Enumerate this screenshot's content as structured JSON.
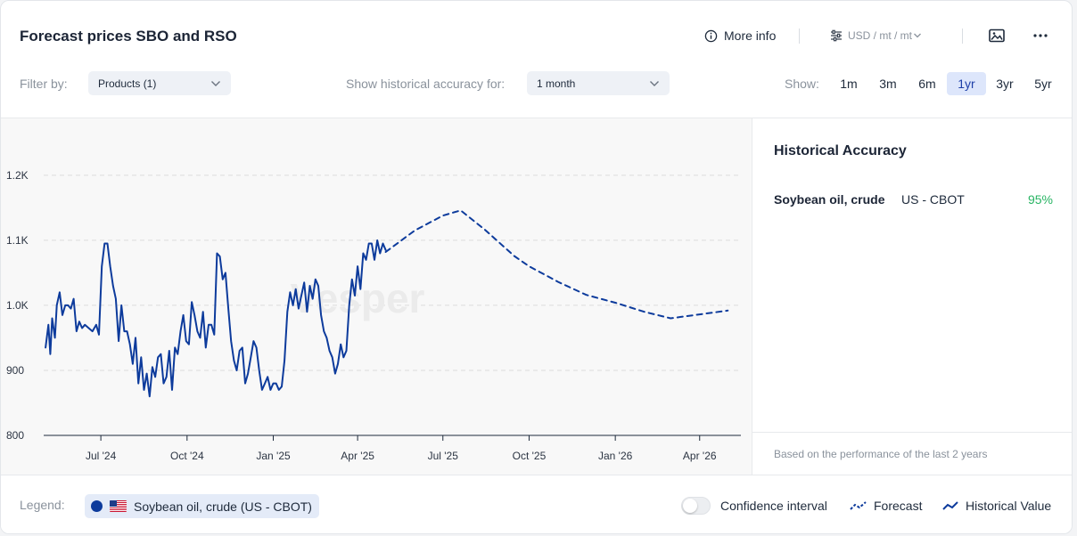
{
  "header": {
    "title": "Forecast prices SBO and RSO",
    "more_info_label": "More info",
    "unit_selector": "USD / mt / mt"
  },
  "filters": {
    "filter_by_label": "Filter by:",
    "products_value": "Products (1)",
    "accuracy_label": "Show historical accuracy for:",
    "accuracy_value": "1 month",
    "show_label": "Show:",
    "ranges": [
      "1m",
      "3m",
      "6m",
      "1yr",
      "3yr",
      "5yr"
    ],
    "active_range": "1yr"
  },
  "watermark": "Vesper",
  "chart_data": {
    "type": "line",
    "ylim": [
      800,
      1260
    ],
    "yticks": [
      800,
      900,
      1000,
      1100,
      1200
    ],
    "ytick_labels": [
      "800",
      "900",
      "1.0K",
      "1.1K",
      "1.2K"
    ],
    "xlim": [
      "2024-05-01",
      "2026-05-15"
    ],
    "xticks": [
      "2024-07-01",
      "2024-10-01",
      "2025-01-01",
      "2025-04-01",
      "2025-07-01",
      "2025-10-01",
      "2026-01-01",
      "2026-04-01"
    ],
    "xtick_labels": [
      "Jul '24",
      "Oct '24",
      "Jan '25",
      "Apr '25",
      "Jul '25",
      "Oct '25",
      "Jan '26",
      "Apr '26"
    ],
    "grid": "horizontal dashed",
    "series": [
      {
        "name": "Historical Value",
        "style": "solid",
        "color": "#0d3b9c",
        "x": [
          "2024-05-03",
          "2024-05-06",
          "2024-05-08",
          "2024-05-10",
          "2024-05-13",
          "2024-05-15",
          "2024-05-18",
          "2024-05-21",
          "2024-05-24",
          "2024-05-27",
          "2024-05-30",
          "2024-06-02",
          "2024-06-05",
          "2024-06-08",
          "2024-06-11",
          "2024-06-14",
          "2024-06-18",
          "2024-06-22",
          "2024-06-26",
          "2024-06-29",
          "2024-07-02",
          "2024-07-05",
          "2024-07-08",
          "2024-07-11",
          "2024-07-14",
          "2024-07-17",
          "2024-07-20",
          "2024-07-23",
          "2024-07-26",
          "2024-07-29",
          "2024-08-01",
          "2024-08-04",
          "2024-08-07",
          "2024-08-10",
          "2024-08-13",
          "2024-08-16",
          "2024-08-19",
          "2024-08-22",
          "2024-08-25",
          "2024-08-28",
          "2024-08-31",
          "2024-09-03",
          "2024-09-06",
          "2024-09-09",
          "2024-09-12",
          "2024-09-15",
          "2024-09-18",
          "2024-09-21",
          "2024-09-24",
          "2024-09-27",
          "2024-09-30",
          "2024-10-03",
          "2024-10-06",
          "2024-10-09",
          "2024-10-12",
          "2024-10-15",
          "2024-10-18",
          "2024-10-21",
          "2024-10-24",
          "2024-10-27",
          "2024-10-30",
          "2024-11-02",
          "2024-11-05",
          "2024-11-08",
          "2024-11-11",
          "2024-11-14",
          "2024-11-17",
          "2024-11-20",
          "2024-11-23",
          "2024-11-26",
          "2024-11-29",
          "2024-12-02",
          "2024-12-05",
          "2024-12-08",
          "2024-12-11",
          "2024-12-14",
          "2024-12-17",
          "2024-12-20",
          "2024-12-23",
          "2024-12-26",
          "2024-12-29",
          "2025-01-01",
          "2025-01-04",
          "2025-01-07",
          "2025-01-10",
          "2025-01-13",
          "2025-01-16",
          "2025-01-19",
          "2025-01-22",
          "2025-01-25",
          "2025-01-28",
          "2025-01-31",
          "2025-02-03",
          "2025-02-06",
          "2025-02-09",
          "2025-02-12",
          "2025-02-15",
          "2025-02-18",
          "2025-02-21",
          "2025-02-24",
          "2025-02-27",
          "2025-03-02",
          "2025-03-05",
          "2025-03-08",
          "2025-03-11",
          "2025-03-14",
          "2025-03-17",
          "2025-03-20",
          "2025-03-23",
          "2025-03-26",
          "2025-03-29",
          "2025-04-01",
          "2025-04-04",
          "2025-04-07",
          "2025-04-10",
          "2025-04-13",
          "2025-04-16",
          "2025-04-19",
          "2025-04-22",
          "2025-04-25",
          "2025-04-28",
          "2025-05-01"
        ],
        "values": [
          935,
          970,
          925,
          980,
          950,
          1000,
          1020,
          985,
          1000,
          1000,
          995,
          1010,
          960,
          975,
          965,
          970,
          965,
          960,
          970,
          955,
          1060,
          1095,
          1095,
          1060,
          1030,
          1010,
          945,
          1000,
          960,
          960,
          940,
          910,
          950,
          880,
          920,
          870,
          895,
          860,
          905,
          890,
          920,
          925,
          880,
          890,
          930,
          870,
          935,
          925,
          960,
          985,
          945,
          940,
          1005,
          985,
          960,
          950,
          990,
          935,
          970,
          970,
          955,
          1080,
          1075,
          1040,
          1050,
          995,
          945,
          915,
          900,
          930,
          935,
          880,
          895,
          920,
          945,
          935,
          900,
          870,
          880,
          890,
          870,
          880,
          880,
          870,
          875,
          915,
          990,
          1020,
          1000,
          1025,
          995,
          1015,
          1035,
          990,
          1030,
          1010,
          1040,
          1030,
          985,
          960,
          950,
          930,
          920,
          895,
          910,
          940,
          920,
          930,
          1000,
          1040,
          1015,
          1060,
          1025,
          1080,
          1070,
          1095,
          1095,
          1070,
          1100,
          1080,
          1095,
          1085
        ]
      },
      {
        "name": "Forecast",
        "style": "dashed",
        "color": "#0d3b9c",
        "x": [
          "2025-05-01",
          "2025-06-01",
          "2025-07-01",
          "2025-07-20",
          "2025-08-15",
          "2025-09-15",
          "2025-10-01",
          "2025-11-01",
          "2025-12-01",
          "2026-01-01",
          "2026-02-01",
          "2026-03-01",
          "2026-04-01",
          "2026-05-01"
        ],
        "values": [
          1082,
          1115,
          1138,
          1146,
          1116,
          1076,
          1060,
          1036,
          1016,
          1004,
          990,
          980,
          986,
          992
        ]
      }
    ]
  },
  "side": {
    "title": "Historical Accuracy",
    "rows": [
      {
        "product": "Soybean oil, crude",
        "exchange": "US - CBOT",
        "accuracy": "95%"
      }
    ],
    "footnote": "Based on the performance of the last 2 years"
  },
  "legend": {
    "label": "Legend:",
    "chip_label": "Soybean oil, crude (US - CBOT)",
    "confidence_label": "Confidence interval",
    "forecast_label": "Forecast",
    "historical_label": "Historical Value"
  },
  "colors": {
    "series": "#0d3b9c",
    "accuracy_good": "#28b463",
    "active_range_bg": "#dde6fb"
  }
}
